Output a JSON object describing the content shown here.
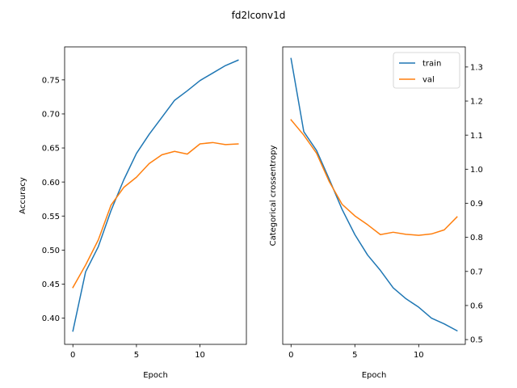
{
  "suptitle": "fd2lconv1d",
  "colors": {
    "train": "#1f77b4",
    "val": "#ff7f0e"
  },
  "chart_data": [
    {
      "type": "line",
      "title": "",
      "xlabel": "Epoch",
      "ylabel": "Accuracy",
      "y_axis_side": "left",
      "xlim": [
        -0.65,
        13.65
      ],
      "ylim": [
        0.3615,
        0.7985
      ],
      "xticks": [
        0,
        5,
        10
      ],
      "yticks": [
        0.4,
        0.45,
        0.5,
        0.55,
        0.6,
        0.65,
        0.7,
        0.75
      ],
      "ytick_labels": [
        "0.40",
        "0.45",
        "0.50",
        "0.55",
        "0.60",
        "0.65",
        "0.70",
        "0.75"
      ],
      "grid": false,
      "legend": null,
      "x": [
        0,
        1,
        2,
        3,
        4,
        5,
        6,
        7,
        8,
        9,
        10,
        11,
        12,
        13
      ],
      "series": [
        {
          "key": "train",
          "values": [
            0.381,
            0.468,
            0.505,
            0.558,
            0.603,
            0.642,
            0.67,
            0.695,
            0.72,
            0.734,
            0.749,
            0.76,
            0.771,
            0.779
          ]
        },
        {
          "key": "val",
          "values": [
            0.445,
            0.478,
            0.515,
            0.566,
            0.592,
            0.607,
            0.627,
            0.64,
            0.645,
            0.641,
            0.656,
            0.658,
            0.655,
            0.656
          ]
        }
      ]
    },
    {
      "type": "line",
      "title": "",
      "xlabel": "Epoch",
      "ylabel": "Categorical crossentropy",
      "y_axis_side": "right",
      "xlim": [
        -0.65,
        13.65
      ],
      "ylim": [
        0.486,
        1.359
      ],
      "xticks": [
        0,
        5,
        10
      ],
      "yticks": [
        0.5,
        0.6,
        0.7,
        0.8,
        0.9,
        1.0,
        1.1,
        1.2,
        1.3
      ],
      "ytick_labels": [
        "0.5",
        "0.6",
        "0.7",
        "0.8",
        "0.9",
        "1.0",
        "1.1",
        "1.2",
        "1.3"
      ],
      "grid": false,
      "legend": {
        "placement": "top-right",
        "entries": [
          "train",
          "val"
        ]
      },
      "x": [
        0,
        1,
        2,
        3,
        4,
        5,
        6,
        7,
        8,
        9,
        10,
        11,
        12,
        13
      ],
      "series": [
        {
          "name": "train",
          "key": "train",
          "values": [
            1.325,
            1.11,
            1.055,
            0.97,
            0.882,
            0.808,
            0.748,
            0.703,
            0.652,
            0.62,
            0.595,
            0.563,
            0.546,
            0.526
          ]
        },
        {
          "name": "val",
          "key": "val",
          "values": [
            1.145,
            1.1,
            1.047,
            0.963,
            0.897,
            0.863,
            0.837,
            0.808,
            0.815,
            0.809,
            0.806,
            0.81,
            0.822,
            0.86
          ]
        }
      ]
    }
  ]
}
